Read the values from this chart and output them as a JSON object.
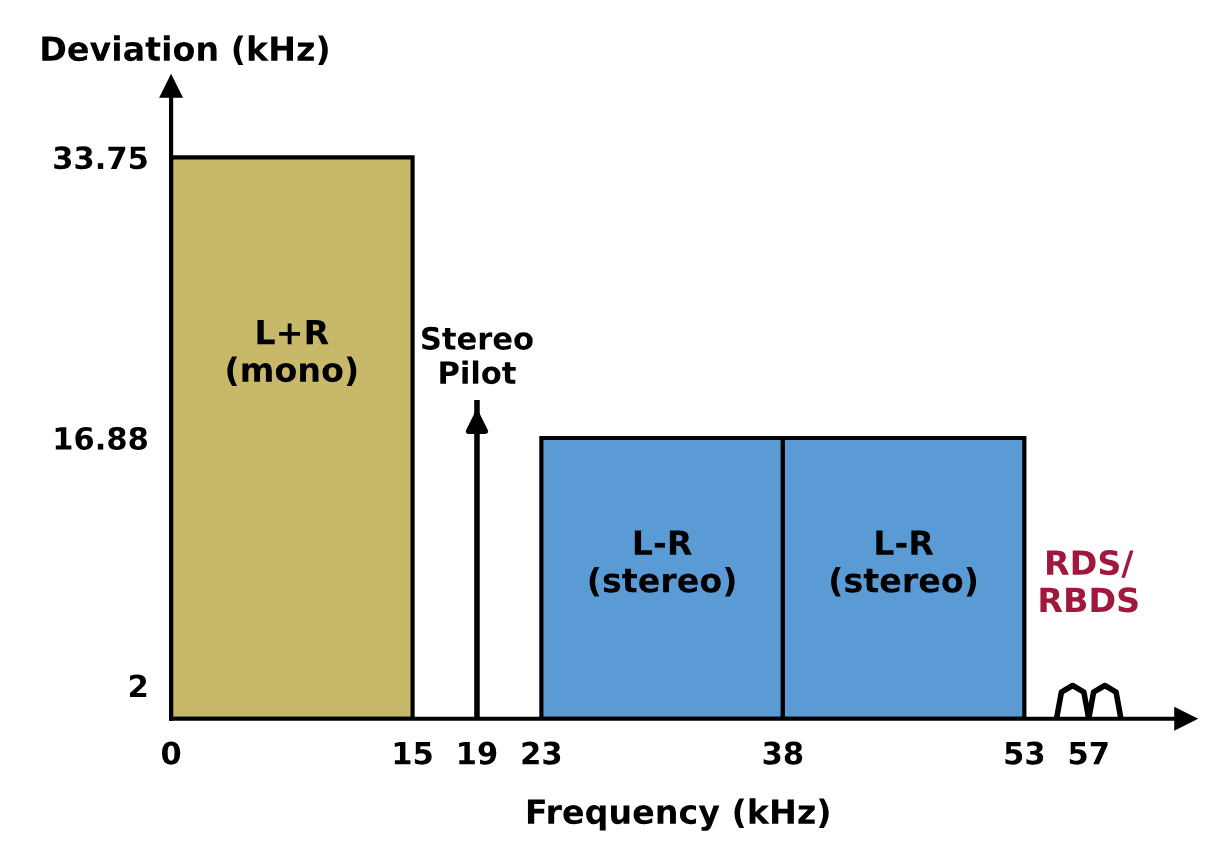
{
  "chart_data": {
    "type": "histogram",
    "xlabel": "Frequency (kHz)",
    "ylabel": "Deviation (kHz)",
    "bins": [
      0,
      15,
      23,
      38,
      53
    ],
    "values": [
      33.75,
      null,
      16.88,
      16.88
    ],
    "colors": [
      "#c8b96a",
      "#c8b96a",
      "#5b9bd5",
      "#5b9bd5"
    ],
    "series": [
      {
        "type": "line",
        "name": "RDS/\nRBDS",
        "color": "#000000",
        "x": [
          55,
          55.3,
          56,
          56.7,
          57,
          57.3,
          58,
          58.7,
          59
        ],
        "values": [
          0,
          1.6,
          2,
          1.6,
          0,
          1.6,
          2,
          1.6,
          0
        ]
      }
    ],
    "value_labels": [
      "L+R\n(mono)",
      null,
      "L-R\n(stereo)",
      "L-R\n(stereo)"
    ],
    "ref_lines": [
      {
        "axis": "x",
        "value": 19,
        "label": "Stereo\nPilot"
      }
    ],
    "xlim": [
      0,
      63
    ],
    "ylim": [
      0,
      38
    ],
    "xticks": [
      0,
      15,
      19,
      23,
      38,
      53,
      57
    ],
    "yticks": [
      2,
      16.88,
      33.75
    ],
    "grid": false,
    "legend": false
  }
}
